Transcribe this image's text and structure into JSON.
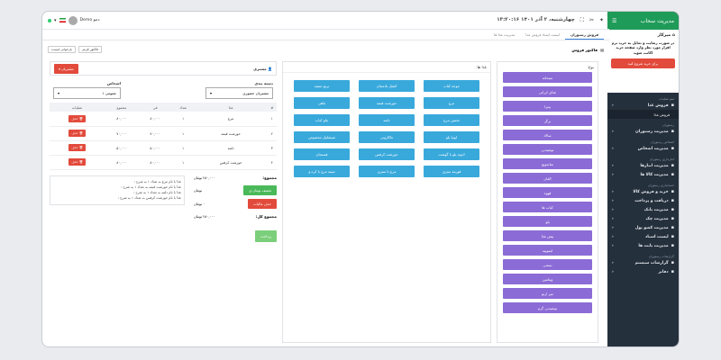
{
  "sidebar": {
    "brand": "مدیریت سحاب",
    "dashboard_title": "میزکار",
    "message": "در صورت رضایت و تمایل به خرید نرم افزار مورد نظر وارد صفحه خرید اکانت شوید",
    "cta": "برای خرید شروع کنید",
    "sections": [
      {
        "title": "منو عملیات",
        "items": [
          {
            "label": "فروش غذا",
            "icon": "utensils-icon",
            "sub": [
              "فروش غذا"
            ]
          }
        ]
      },
      {
        "title": "رستوران",
        "items": [
          {
            "label": "مدیریت رستوران",
            "icon": "store-icon"
          }
        ]
      },
      {
        "title": "اشخاص رستوران",
        "items": [
          {
            "label": "مدیریت اشخاص",
            "icon": "users-icon"
          }
        ]
      },
      {
        "title": "انبارداری رستوران",
        "items": [
          {
            "label": "مدیریت انبارها",
            "icon": "warehouse-icon"
          },
          {
            "label": "مدیریت کالا ها",
            "icon": "box-icon"
          }
        ]
      },
      {
        "title": "حسابداری رستوران",
        "items": [
          {
            "label": "خرید و فروش کالا",
            "icon": "cart-icon"
          },
          {
            "label": "دریافت و پرداخت",
            "icon": "dollar-icon"
          },
          {
            "label": "مدیریت بانک",
            "icon": "bank-icon"
          },
          {
            "label": "مدیریت چک",
            "icon": "check-icon"
          },
          {
            "label": "مدیریت کشو پول",
            "icon": "drawer-icon"
          },
          {
            "label": "لیست اسناد",
            "icon": "file-icon"
          },
          {
            "label": "مدیریت بابت ها",
            "icon": "list-icon"
          }
        ]
      },
      {
        "title": "گزارشات رستوران",
        "items": [
          {
            "label": "گزارشات سیستم",
            "icon": "chart-icon"
          },
          {
            "label": "دفاتر",
            "icon": "book-icon"
          }
        ]
      }
    ]
  },
  "topbar": {
    "datetime": "چهارشنبه، ۲ آذر ۱۴۰۱  ۱۳:۲۰:۱۶",
    "user": "Demo دمو"
  },
  "tabs": [
    "فروش رستوران",
    "لیست اسناد فروش غذا",
    "مدیریت غذا ها"
  ],
  "subbar": {
    "title": "فاکتور فروش",
    "chips": [
      "فاکتور قرمز",
      "بازخوانی لیست"
    ]
  },
  "categories": {
    "header": "نوع:",
    "items": [
      "سبحانه",
      "غذای ایرانی",
      "پیتزا",
      "برگر",
      "سالاد",
      "نوشیدنی",
      "ساندویچ",
      "الفان",
      "قهوه",
      "کباب ها",
      "پلو",
      "پیش غذا",
      "لیموپیه",
      "بستنی",
      "ویتامین",
      "میز ارتو",
      "نوشیدنی گرم"
    ]
  },
  "foods": {
    "header": "غذا ها:",
    "items": [
      "جوجه کباب",
      "کشک بادمجان",
      "برنج سفید",
      "مرغ",
      "خورشت قیمه",
      "ماهی",
      "تخمین مرغ",
      "دلمه",
      "چلو کباب",
      "لوبیا پلو",
      "ماکارونی",
      "شیشلیک مخصوص",
      "ادویه پلو با گوشت",
      "خورشت کرفس",
      "فسنجان",
      "قورمه سبزی",
      "مرغ با سبزی",
      "سینه مرغ با کره و"
    ]
  },
  "order": {
    "customer_label": "مشتری",
    "customer_btn": "مشتریان",
    "table_label": "دسته بندی",
    "table_value": "مشتریان حضوری",
    "person_label": "اشخاص",
    "person_value": "عمومی ۱",
    "headers": [
      "#",
      "غذا",
      "تعداد",
      "فی",
      "مجموع",
      "عملیات"
    ],
    "rows": [
      {
        "n": "۱",
        "name": "مرغ",
        "qty": "۱",
        "price": "۸۰,۰۰۰",
        "total": "۸۰,۰۰۰",
        "action": "حذف"
      },
      {
        "n": "۲",
        "name": "خورشت قیمه",
        "qty": "۱",
        "price": "۷۰,۰۰۰",
        "total": "۷۰,۰۰۰",
        "action": "حذف"
      },
      {
        "n": "۳",
        "name": "دلمه",
        "qty": "۱",
        "price": "۵۰,۰۰۰",
        "total": "۵۰,۰۰۰",
        "action": "حذف"
      },
      {
        "n": "۴",
        "name": "خورشت کرفس",
        "qty": "۱",
        "price": "۸۰,۰۰۰",
        "total": "۸۰,۰۰۰",
        "action": "حذف"
      }
    ],
    "sum_label": "مجموع:",
    "sum_value": "۲۸۰,۰۰۰ تومان",
    "discount_btn": "تخفیف تومان ی",
    "discount_unit": "تومان",
    "tax_btn": "حذف مالیات",
    "tax_value": "۰ تومان",
    "grand_label": "مجموع کل:",
    "grand_value": "۲۸۰,۰۰۰ تومان",
    "pay_btn": "پرداخت",
    "notes": [
      "غذا با نام مرغ به تعداد ۱ به شرح :",
      "غذا با نام خورشت قیمه به تعداد ۱ به شرح :",
      "غذا با نام دلمه به تعداد ۱ به شرح :",
      "غذا با نام خورشت کرفس به تعداد ۱ به شرح :"
    ]
  }
}
